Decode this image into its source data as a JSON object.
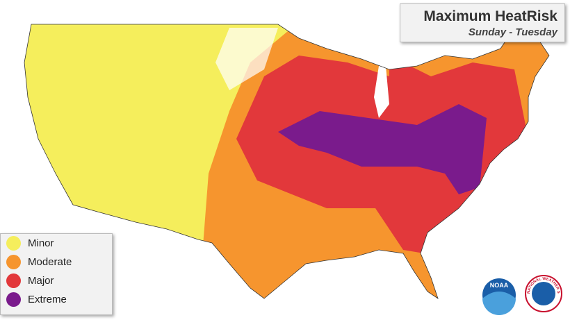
{
  "header": {
    "title": "Maximum HeatRisk",
    "subtitle": "Sunday - Tuesday"
  },
  "legend": {
    "items": [
      {
        "label": "Minor",
        "color": "#f5ee5c"
      },
      {
        "label": "Moderate",
        "color": "#f6952e"
      },
      {
        "label": "Major",
        "color": "#e2383b"
      },
      {
        "label": "Extreme",
        "color": "#7a1b8c"
      }
    ]
  },
  "logos": {
    "noaa": "NOAA",
    "nws": "NATIONAL WEATHER SERVICE"
  }
}
